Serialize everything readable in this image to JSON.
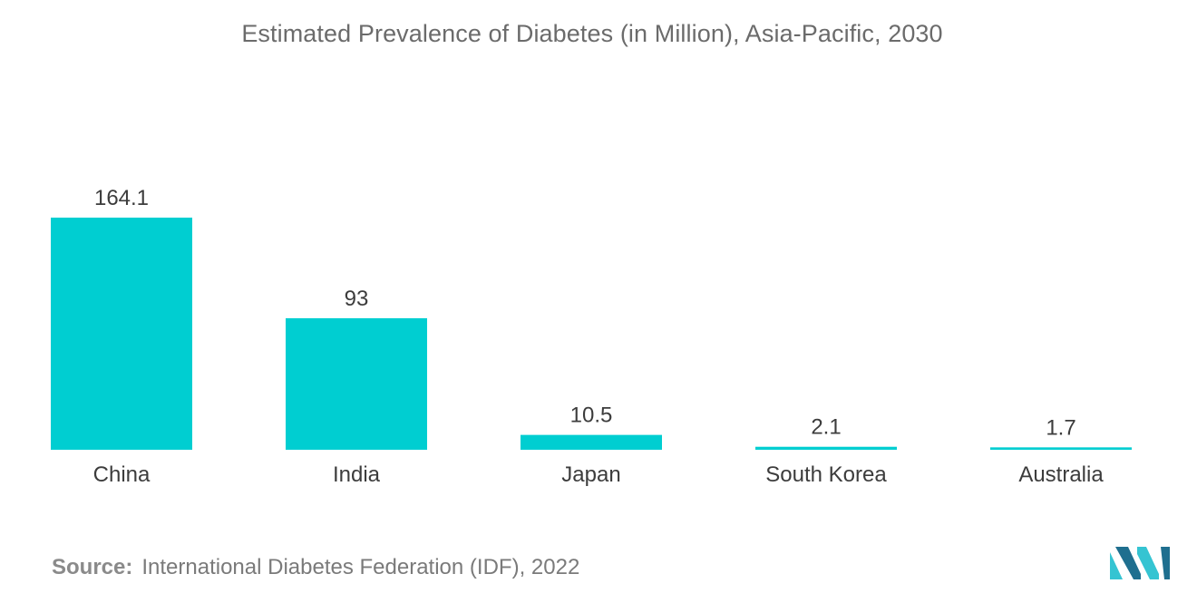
{
  "chart_data": {
    "type": "bar",
    "title": "Estimated Prevalence of Diabetes (in Million), Asia-Pacific, 2030",
    "categories": [
      "China",
      "India",
      "Japan",
      "South Korea",
      "Australia"
    ],
    "values": [
      164.1,
      93,
      10.5,
      2.1,
      1.7
    ],
    "value_labels": [
      "164.1",
      "93",
      "10.5",
      "2.1",
      "1.7"
    ],
    "xlabel": "",
    "ylabel": "",
    "ylim": [
      0,
      164.1
    ],
    "grid": false,
    "bar_color": "#00ced1"
  },
  "source": {
    "label": "Source:",
    "text": "International Diabetes Federation (IDF), 2022"
  },
  "logo": {
    "icon": "mordor-intelligence-logo-icon",
    "color_dark": "#1f6f8f",
    "color_light": "#35c4d2"
  }
}
